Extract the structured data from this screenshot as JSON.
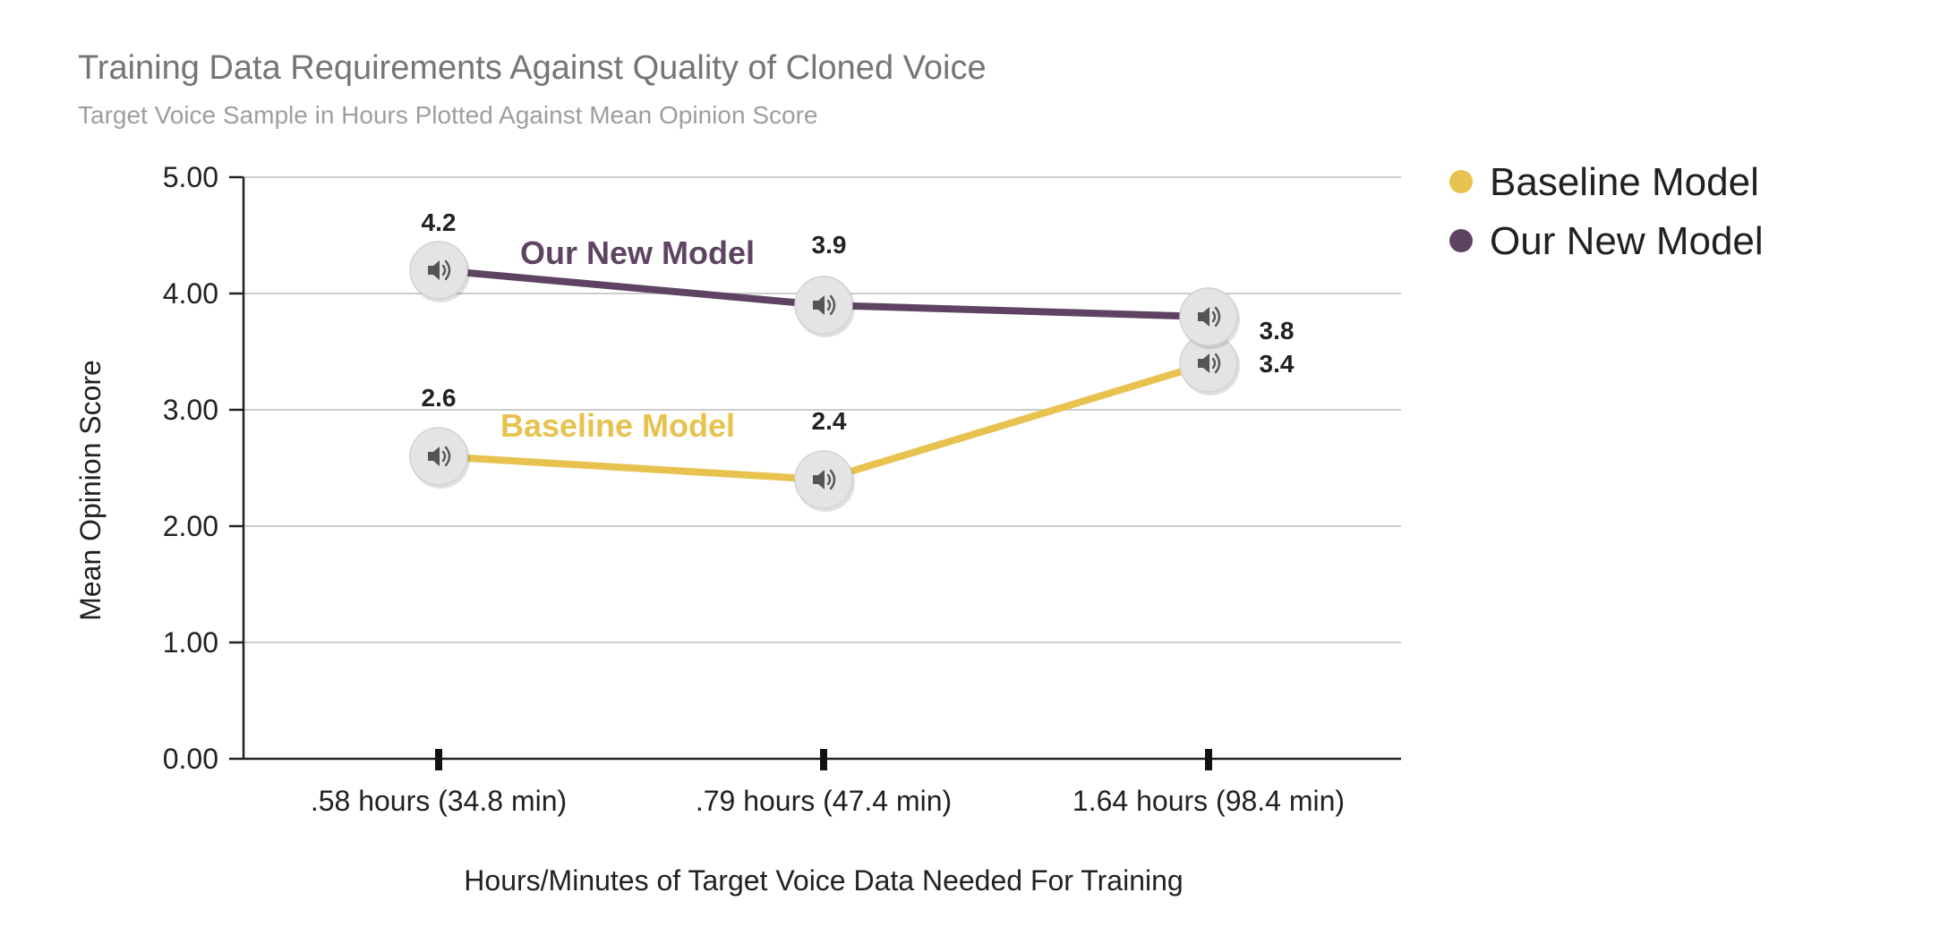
{
  "chart_data": {
    "type": "line",
    "title": "Training Data Requirements Against Quality of Cloned Voice",
    "subtitle": "Target Voice Sample in Hours Plotted Against Mean Opinion Score",
    "xlabel": "Hours/Minutes of Target Voice Data Needed For Training",
    "ylabel": "Mean Opinion Score",
    "categories": [
      ".58 hours (34.8 min)",
      ".79 hours (47.4 min)",
      "1.64 hours (98.4 min)"
    ],
    "ylim": [
      0,
      5
    ],
    "yticks": [
      "0.00",
      "1.00",
      "2.00",
      "3.00",
      "4.00",
      "5.00"
    ],
    "grid": true,
    "legend_position": "right",
    "series": [
      {
        "name": "Baseline Model",
        "values": [
          2.6,
          2.4,
          3.4
        ],
        "data_labels": [
          "2.6",
          "2.4",
          "3.4"
        ],
        "color": "#E8C24F"
      },
      {
        "name": "Our New Model",
        "values": [
          4.2,
          3.9,
          3.8
        ],
        "data_labels": [
          "4.2",
          "3.9",
          "3.8"
        ],
        "color": "#5E4462"
      }
    ],
    "point_icon": "speaker-icon"
  }
}
